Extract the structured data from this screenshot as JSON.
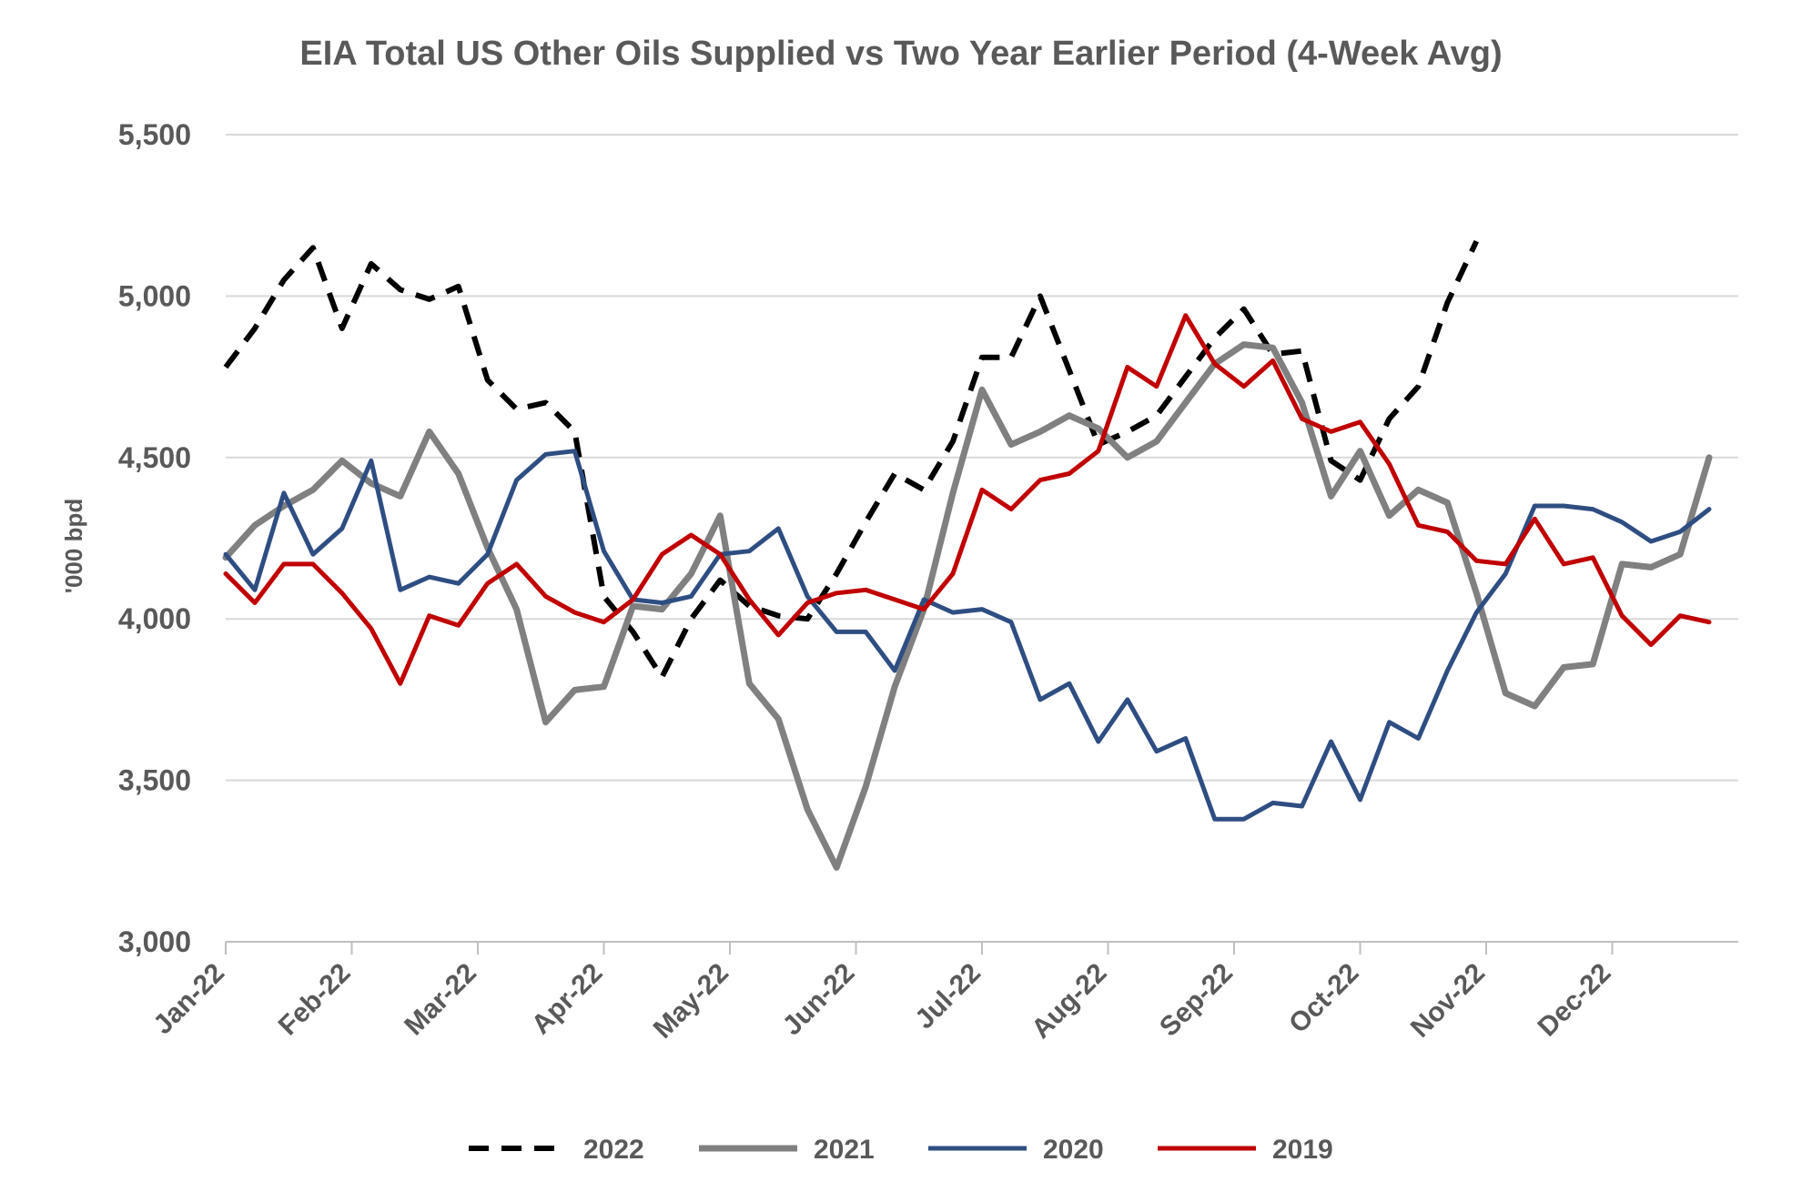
{
  "chart_data": {
    "type": "line",
    "title": "EIA  Total US Other Oils Supplied vs Two Year Earlier Period (4-Week Avg)",
    "xlabel": "",
    "ylabel": "'000 bpd",
    "ylim": [
      3000,
      5500
    ],
    "yticks": [
      "3,000",
      "3,500",
      "4,000",
      "4,500",
      "5,000",
      "5,500"
    ],
    "ytick_values": [
      3000,
      3500,
      4000,
      4500,
      5000,
      5500
    ],
    "xticks": [
      "Jan-22",
      "Feb-22",
      "Mar-22",
      "Apr-22",
      "May-22",
      "Jun-22",
      "Jul-22",
      "Aug-22",
      "Sep-22",
      "Oct-22",
      "Nov-22",
      "Dec-22"
    ],
    "x_unit": "weeks",
    "xlim": [
      0,
      52
    ],
    "grid": true,
    "legend_position": "bottom",
    "series": [
      {
        "name": "2022",
        "color": "#000000",
        "dash": true,
        "values": [
          4780,
          4900,
          5050,
          5150,
          4900,
          5100,
          5020,
          4990,
          5030,
          4740,
          4650,
          4670,
          4580,
          4070,
          3960,
          3820,
          4000,
          4120,
          4040,
          4010,
          4000,
          4140,
          4300,
          4450,
          4400,
          4550,
          4810,
          4810,
          5000,
          4770,
          4540,
          4580,
          4630,
          4750,
          4870,
          4960,
          4820,
          4830,
          4490,
          4430,
          4620,
          4720,
          4980,
          5170
        ]
      },
      {
        "name": "2021",
        "color": "#808080",
        "dash": false,
        "values": [
          4190,
          4290,
          4350,
          4400,
          4490,
          4420,
          4380,
          4580,
          4450,
          4220,
          4030,
          3680,
          3780,
          3790,
          4040,
          4030,
          4140,
          4320,
          3800,
          3690,
          3410,
          3230,
          3480,
          3790,
          4030,
          4390,
          4710,
          4540,
          4580,
          4630,
          4590,
          4500,
          4550,
          4670,
          4790,
          4850,
          4840,
          4670,
          4380,
          4520,
          4320,
          4400,
          4360,
          4080,
          3770,
          3730,
          3850,
          3860,
          4170,
          4160,
          4200,
          4500
        ]
      },
      {
        "name": "2020",
        "color": "#2E4E82",
        "dash": false,
        "values": [
          4200,
          4090,
          4390,
          4200,
          4280,
          4490,
          4090,
          4130,
          4110,
          4200,
          4430,
          4510,
          4520,
          4210,
          4060,
          4050,
          4070,
          4200,
          4210,
          4280,
          4070,
          3960,
          3960,
          3840,
          4060,
          4020,
          4030,
          3990,
          3750,
          3800,
          3620,
          3750,
          3590,
          3630,
          3380,
          3380,
          3430,
          3420,
          3620,
          3440,
          3680,
          3630,
          3840,
          4020,
          4140,
          4350,
          4350,
          4340,
          4300,
          4240,
          4270,
          4340
        ]
      },
      {
        "name": "2019",
        "color": "#C00000",
        "dash": false,
        "values": [
          4140,
          4050,
          4170,
          4170,
          4080,
          3970,
          3800,
          4010,
          3980,
          4110,
          4170,
          4070,
          4020,
          3990,
          4060,
          4200,
          4260,
          4200,
          4060,
          3950,
          4050,
          4080,
          4090,
          4060,
          4030,
          4140,
          4400,
          4340,
          4430,
          4450,
          4520,
          4780,
          4720,
          4940,
          4790,
          4720,
          4800,
          4620,
          4580,
          4610,
          4480,
          4290,
          4270,
          4180,
          4170,
          4310,
          4170,
          4190,
          4010,
          3920,
          4010,
          3990
        ]
      }
    ]
  }
}
